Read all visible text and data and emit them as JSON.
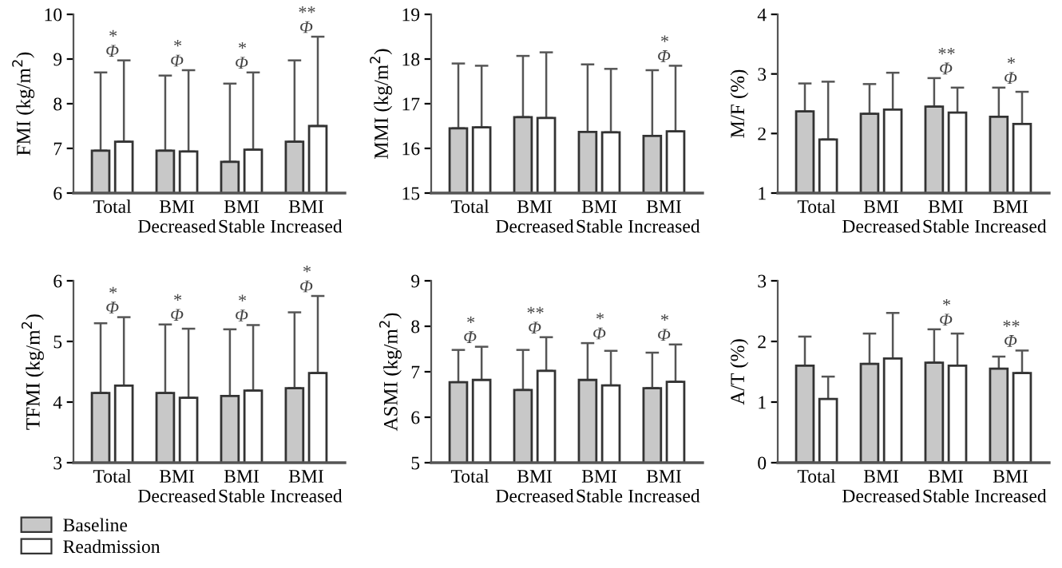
{
  "chart_data": [
    {
      "type": "bar",
      "ylabel": "FMI (kg/m$^{2}$)",
      "categories": [
        "Total",
        "BMI\nDecreased",
        "BMI\nStable",
        "BMI\nIncreased"
      ],
      "ylim": [
        6,
        10
      ],
      "yticks": [
        6,
        7,
        8,
        9,
        10
      ],
      "series": [
        {
          "color": "#c8c8c8",
          "values": [
            6.95,
            6.95,
            6.7,
            7.15
          ],
          "errors": [
            [
              6.95,
              8.7
            ],
            [
              6.95,
              8.63
            ],
            [
              6.7,
              8.45
            ],
            [
              7.15,
              8.97
            ]
          ]
        },
        {
          "color": "#ffffff",
          "values": [
            7.15,
            6.93,
            6.97,
            7.5
          ],
          "errors": [
            [
              7.15,
              8.97
            ],
            [
              6.93,
              8.75
            ],
            [
              6.97,
              8.7
            ],
            [
              7.5,
              9.5
            ]
          ]
        }
      ],
      "annotations": [
        {
          "text": "*\nΦ",
          "x": "Total",
          "y": 8.97
        },
        {
          "text": "*\nΦ",
          "x": "BMI\nDecreased",
          "y": 8.75
        },
        {
          "text": "*\nΦ",
          "x": "BMI\nStable",
          "y": 8.7
        },
        {
          "text": "**\nΦ",
          "x": "BMI\nIncreased",
          "y": 9.5
        }
      ]
    },
    {
      "type": "bar",
      "ylabel": "MMI (kg/m$^{2}$)",
      "categories": [
        "Total",
        "BMI\nDecreased",
        "BMI\nStable",
        "BMI\nIncreased"
      ],
      "ylim": [
        15,
        19
      ],
      "yticks": [
        15,
        16,
        17,
        18,
        19
      ],
      "series": [
        {
          "color": "#c8c8c8",
          "values": [
            16.45,
            16.7,
            16.37,
            16.28
          ],
          "errors": [
            [
              16.45,
              17.9
            ],
            [
              16.7,
              18.07
            ],
            [
              16.37,
              17.88
            ],
            [
              16.28,
              17.75
            ]
          ]
        },
        {
          "color": "#ffffff",
          "values": [
            16.47,
            16.68,
            16.36,
            16.38
          ],
          "errors": [
            [
              16.47,
              17.85
            ],
            [
              16.68,
              18.15
            ],
            [
              16.36,
              17.78
            ],
            [
              16.38,
              17.85
            ]
          ]
        }
      ],
      "annotations": [
        {
          "text": "*\nΦ",
          "x": "BMI\nIncreased",
          "y": 17.85
        }
      ]
    },
    {
      "type": "bar",
      "ylabel": "M/F (%)",
      "categories": [
        "Total",
        "BMI\nDecreased",
        "BMI\nStable",
        "BMI\nIncreased"
      ],
      "ylim": [
        1,
        4
      ],
      "yticks": [
        1,
        2,
        3,
        4
      ],
      "series": [
        {
          "color": "#c8c8c8",
          "values": [
            2.37,
            2.33,
            2.45,
            2.28
          ],
          "errors": [
            [
              2.37,
              2.84
            ],
            [
              2.33,
              2.83
            ],
            [
              2.45,
              2.93
            ],
            [
              2.28,
              2.77
            ]
          ]
        },
        {
          "color": "#ffffff",
          "values": [
            1.9,
            2.4,
            2.35,
            2.16
          ],
          "errors": [
            [
              1.9,
              2.87
            ],
            [
              2.4,
              3.02
            ],
            [
              2.35,
              2.77
            ],
            [
              2.16,
              2.7
            ]
          ]
        }
      ],
      "annotations": [
        {
          "text": "**\nΦ",
          "x": "BMI\nStable",
          "y": 2.93
        },
        {
          "text": "*\nΦ",
          "x": "BMI\nIncreased",
          "y": 2.77
        }
      ]
    },
    {
      "type": "bar",
      "ylabel": "TFMI (kg/m$^{2}$)",
      "categories": [
        "Total",
        "BMI\nDecreased",
        "BMI\nStable",
        "BMI\nIncreased"
      ],
      "ylim": [
        3,
        6
      ],
      "yticks": [
        3,
        4,
        5,
        6
      ],
      "legend": "bottom left",
      "series": [
        {
          "name": "Baseline",
          "color": "#c8c8c8",
          "values": [
            4.15,
            4.15,
            4.1,
            4.23
          ],
          "errors": [
            [
              4.15,
              5.3
            ],
            [
              4.15,
              5.28
            ],
            [
              4.1,
              5.2
            ],
            [
              4.23,
              5.48
            ]
          ]
        },
        {
          "name": "Readmission",
          "color": "#ffffff",
          "values": [
            4.27,
            4.07,
            4.19,
            4.48
          ],
          "errors": [
            [
              4.27,
              5.4
            ],
            [
              4.07,
              5.21
            ],
            [
              4.19,
              5.27
            ],
            [
              4.48,
              5.75
            ]
          ]
        }
      ],
      "annotations": [
        {
          "text": "*\nΦ",
          "x": "Total",
          "y": 5.4
        },
        {
          "text": "*\nΦ",
          "x": "BMI\nDecreased",
          "y": 5.28
        },
        {
          "text": "*\nΦ",
          "x": "BMI\nStable",
          "y": 5.27
        },
        {
          "text": "*\nΦ",
          "x": "BMI\nIncreased",
          "y": 5.75
        }
      ]
    },
    {
      "type": "bar",
      "ylabel": "ASMI (kg/m$^{2}$)",
      "categories": [
        "Total",
        "BMI\nDecreased",
        "BMI\nStable",
        "BMI\nIncreased"
      ],
      "ylim": [
        5,
        9
      ],
      "yticks": [
        5,
        6,
        7,
        8,
        9
      ],
      "series": [
        {
          "color": "#c8c8c8",
          "values": [
            6.77,
            6.6,
            6.82,
            6.64
          ],
          "errors": [
            [
              6.77,
              7.48
            ],
            [
              6.6,
              7.48
            ],
            [
              6.82,
              7.63
            ],
            [
              6.64,
              7.42
            ]
          ]
        },
        {
          "color": "#ffffff",
          "values": [
            6.82,
            7.02,
            6.7,
            6.78
          ],
          "errors": [
            [
              6.82,
              7.55
            ],
            [
              7.02,
              7.76
            ],
            [
              6.7,
              7.46
            ],
            [
              6.78,
              7.6
            ]
          ]
        }
      ],
      "annotations": [
        {
          "text": "*\nΦ",
          "x": "Total",
          "y": 7.55
        },
        {
          "text": "**\nΦ",
          "x": "BMI\nDecreased",
          "y": 7.76
        },
        {
          "text": "*\nΦ",
          "x": "BMI\nStable",
          "y": 7.63
        },
        {
          "text": "*\nΦ",
          "x": "BMI\nIncreased",
          "y": 7.6
        }
      ]
    },
    {
      "type": "bar",
      "ylabel": "A/T (%)",
      "categories": [
        "Total",
        "BMI\nDecreased",
        "BMI\nStable",
        "BMI\nIncreased"
      ],
      "ylim": [
        0,
        3
      ],
      "yticks": [
        0,
        1,
        2,
        3
      ],
      "series": [
        {
          "color": "#c8c8c8",
          "values": [
            1.6,
            1.63,
            1.65,
            1.55
          ],
          "errors": [
            [
              1.6,
              2.08
            ],
            [
              1.63,
              2.13
            ],
            [
              1.65,
              2.2
            ],
            [
              1.55,
              1.75
            ]
          ]
        },
        {
          "color": "#ffffff",
          "values": [
            1.05,
            1.72,
            1.6,
            1.48
          ],
          "errors": [
            [
              1.05,
              1.42
            ],
            [
              1.72,
              2.47
            ],
            [
              1.6,
              2.13
            ],
            [
              1.48,
              1.85
            ]
          ]
        }
      ],
      "annotations": [
        {
          "text": "*\nΦ",
          "x": "BMI\nStable",
          "y": 2.2
        },
        {
          "text": "**\nΦ",
          "x": "BMI\nIncreased",
          "y": 1.85
        }
      ]
    }
  ]
}
